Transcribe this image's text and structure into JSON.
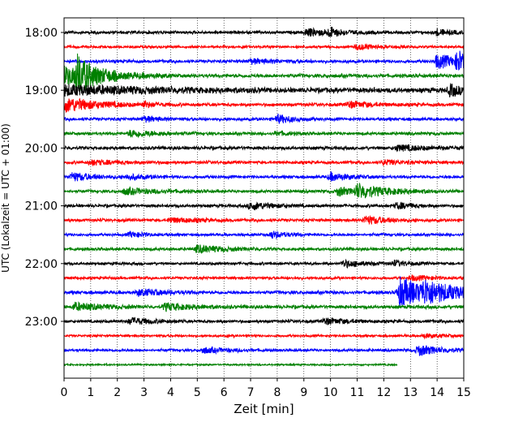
{
  "chart_data": {
    "type": "line",
    "xlabel": "Zeit  [min]",
    "ylabel": "UTC (Lokalzeit = UTC + 01:00)",
    "xlim": [
      0,
      15
    ],
    "x_ticks": [
      "0",
      "1",
      "2",
      "3",
      "4",
      "5",
      "6",
      "7",
      "8",
      "9",
      "10",
      "11",
      "12",
      "13",
      "14",
      "15"
    ],
    "y_ticks": [
      {
        "label": "18:00",
        "trace": 0
      },
      {
        "label": "19:00",
        "trace": 4
      },
      {
        "label": "20:00",
        "trace": 8
      },
      {
        "label": "21:00",
        "trace": 12
      },
      {
        "label": "22:00",
        "trace": 16
      },
      {
        "label": "23:00",
        "trace": 20
      }
    ],
    "grid": "vertical dotted",
    "trace_interval_minutes": 15,
    "colors": [
      "#000000",
      "#ff0000",
      "#0000ff",
      "#008000"
    ],
    "traces": [
      {
        "start": "18:00",
        "color": "#000000",
        "noise": 0.18,
        "events": [
          {
            "t": 9.1,
            "amp": 0.45,
            "dur": 1.2
          },
          {
            "t": 10.0,
            "amp": 0.5,
            "dur": 0.3
          },
          {
            "t": 14.0,
            "amp": 0.4,
            "dur": 0.5
          }
        ]
      },
      {
        "start": "18:15",
        "color": "#ff0000",
        "noise": 0.15,
        "events": [
          {
            "t": 11.0,
            "amp": 0.35,
            "dur": 0.8
          }
        ]
      },
      {
        "start": "18:30",
        "color": "#0000ff",
        "noise": 0.18,
        "events": [
          {
            "t": 7.0,
            "amp": 0.3,
            "dur": 1.0
          },
          {
            "t": 14.0,
            "amp": 0.9,
            "dur": 1.0
          },
          {
            "t": 14.8,
            "amp": 1.3,
            "dur": 0.2
          }
        ]
      },
      {
        "start": "18:45",
        "color": "#008000",
        "noise": 0.22,
        "events": [
          {
            "t": 0.0,
            "amp": 1.2,
            "dur": 1.6
          },
          {
            "t": 0.5,
            "amp": 2.0,
            "dur": 0.6
          }
        ]
      },
      {
        "start": "19:00",
        "color": "#000000",
        "noise": 0.3,
        "events": [
          {
            "t": 0.0,
            "amp": 0.6,
            "dur": 3.0
          },
          {
            "t": 14.5,
            "amp": 0.7,
            "dur": 0.5
          }
        ]
      },
      {
        "start": "19:15",
        "color": "#ff0000",
        "noise": 0.2,
        "events": [
          {
            "t": 0.0,
            "amp": 1.0,
            "dur": 1.2
          },
          {
            "t": 3.0,
            "amp": 0.35,
            "dur": 0.5
          },
          {
            "t": 10.7,
            "amp": 0.4,
            "dur": 0.8
          }
        ]
      },
      {
        "start": "19:30",
        "color": "#0000ff",
        "noise": 0.18,
        "events": [
          {
            "t": 3.0,
            "amp": 0.35,
            "dur": 0.6
          },
          {
            "t": 8.0,
            "amp": 0.55,
            "dur": 0.6
          }
        ]
      },
      {
        "start": "19:45",
        "color": "#008000",
        "noise": 0.18,
        "events": [
          {
            "t": 2.5,
            "amp": 0.45,
            "dur": 1.0
          },
          {
            "t": 8.0,
            "amp": 0.25,
            "dur": 0.5
          }
        ]
      },
      {
        "start": "20:00",
        "color": "#000000",
        "noise": 0.2,
        "events": [
          {
            "t": 12.5,
            "amp": 0.35,
            "dur": 1.2
          }
        ]
      },
      {
        "start": "20:15",
        "color": "#ff0000",
        "noise": 0.18,
        "events": [
          {
            "t": 1.0,
            "amp": 0.3,
            "dur": 1.2
          },
          {
            "t": 12.0,
            "amp": 0.3,
            "dur": 0.8
          }
        ]
      },
      {
        "start": "20:30",
        "color": "#0000ff",
        "noise": 0.18,
        "events": [
          {
            "t": 0.3,
            "amp": 0.55,
            "dur": 0.8
          },
          {
            "t": 2.4,
            "amp": 0.35,
            "dur": 0.6
          },
          {
            "t": 10.0,
            "amp": 0.5,
            "dur": 0.7
          }
        ]
      },
      {
        "start": "20:45",
        "color": "#008000",
        "noise": 0.18,
        "events": [
          {
            "t": 2.3,
            "amp": 0.4,
            "dur": 1.2
          },
          {
            "t": 10.3,
            "amp": 0.6,
            "dur": 0.5
          },
          {
            "t": 11.0,
            "amp": 0.9,
            "dur": 1.2
          }
        ]
      },
      {
        "start": "21:00",
        "color": "#000000",
        "noise": 0.18,
        "events": [
          {
            "t": 7.0,
            "amp": 0.5,
            "dur": 0.8
          },
          {
            "t": 12.5,
            "amp": 0.4,
            "dur": 0.6
          }
        ]
      },
      {
        "start": "21:15",
        "color": "#ff0000",
        "noise": 0.18,
        "events": [
          {
            "t": 4.0,
            "amp": 0.3,
            "dur": 1.0
          },
          {
            "t": 11.3,
            "amp": 0.55,
            "dur": 0.8
          }
        ]
      },
      {
        "start": "21:30",
        "color": "#0000ff",
        "noise": 0.16,
        "events": [
          {
            "t": 2.5,
            "amp": 0.35,
            "dur": 0.6
          },
          {
            "t": 7.8,
            "amp": 0.45,
            "dur": 0.6
          }
        ]
      },
      {
        "start": "21:45",
        "color": "#008000",
        "noise": 0.18,
        "events": [
          {
            "t": 5.0,
            "amp": 0.5,
            "dur": 1.0
          }
        ]
      },
      {
        "start": "22:00",
        "color": "#000000",
        "noise": 0.16,
        "events": [
          {
            "t": 10.5,
            "amp": 0.45,
            "dur": 0.8
          },
          {
            "t": 12.4,
            "amp": 0.35,
            "dur": 0.6
          }
        ]
      },
      {
        "start": "22:15",
        "color": "#ff0000",
        "noise": 0.16,
        "events": [
          {
            "t": 13.0,
            "amp": 0.3,
            "dur": 1.0
          }
        ]
      },
      {
        "start": "22:30",
        "color": "#0000ff",
        "noise": 0.2,
        "events": [
          {
            "t": 2.8,
            "amp": 0.4,
            "dur": 1.0
          },
          {
            "t": 12.6,
            "amp": 2.0,
            "dur": 1.2
          },
          {
            "t": 13.5,
            "amp": 0.9,
            "dur": 1.5
          }
        ]
      },
      {
        "start": "22:45",
        "color": "#008000",
        "noise": 0.2,
        "events": [
          {
            "t": 0.4,
            "amp": 0.5,
            "dur": 1.0
          },
          {
            "t": 3.8,
            "amp": 0.45,
            "dur": 1.0
          }
        ]
      },
      {
        "start": "23:00",
        "color": "#000000",
        "noise": 0.18,
        "events": [
          {
            "t": 2.5,
            "amp": 0.45,
            "dur": 0.8
          },
          {
            "t": 9.8,
            "amp": 0.4,
            "dur": 0.8
          }
        ]
      },
      {
        "start": "23:15",
        "color": "#ff0000",
        "noise": 0.14,
        "events": [
          {
            "t": 13.5,
            "amp": 0.25,
            "dur": 0.8
          }
        ]
      },
      {
        "start": "23:30",
        "color": "#0000ff",
        "noise": 0.16,
        "events": [
          {
            "t": 5.2,
            "amp": 0.35,
            "dur": 1.0
          },
          {
            "t": 13.3,
            "amp": 0.7,
            "dur": 0.8
          }
        ]
      },
      {
        "start": "23:45",
        "color": "#008000",
        "noise": 0.1,
        "end_minute": 12.5,
        "events": []
      }
    ]
  }
}
